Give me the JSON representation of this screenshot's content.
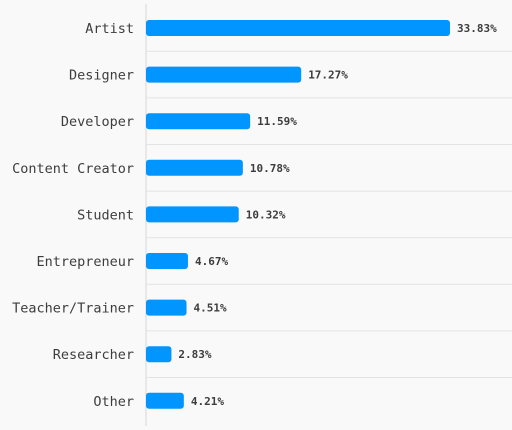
{
  "chart_data": {
    "type": "bar",
    "orientation": "horizontal",
    "categories": [
      "Artist",
      "Designer",
      "Developer",
      "Content Creator",
      "Student",
      "Entrepreneur",
      "Teacher/Trainer",
      "Researcher",
      "Other"
    ],
    "values": [
      33.83,
      17.27,
      11.59,
      10.78,
      10.32,
      4.67,
      4.51,
      2.83,
      4.21
    ],
    "value_labels": [
      "33.83%",
      "17.27%",
      "11.59%",
      "10.78%",
      "10.32%",
      "4.67%",
      "4.51%",
      "2.83%",
      "4.21%"
    ],
    "unit": "%",
    "title": "",
    "xlabel": "",
    "ylabel": "",
    "xlim": [
      0,
      33.83
    ],
    "grid": true,
    "legend": "none",
    "colors": {
      "bar": "#0095ff",
      "text": "#3d3d3d",
      "grid": "#e3e3e3",
      "background": "#f9f9f9"
    }
  }
}
